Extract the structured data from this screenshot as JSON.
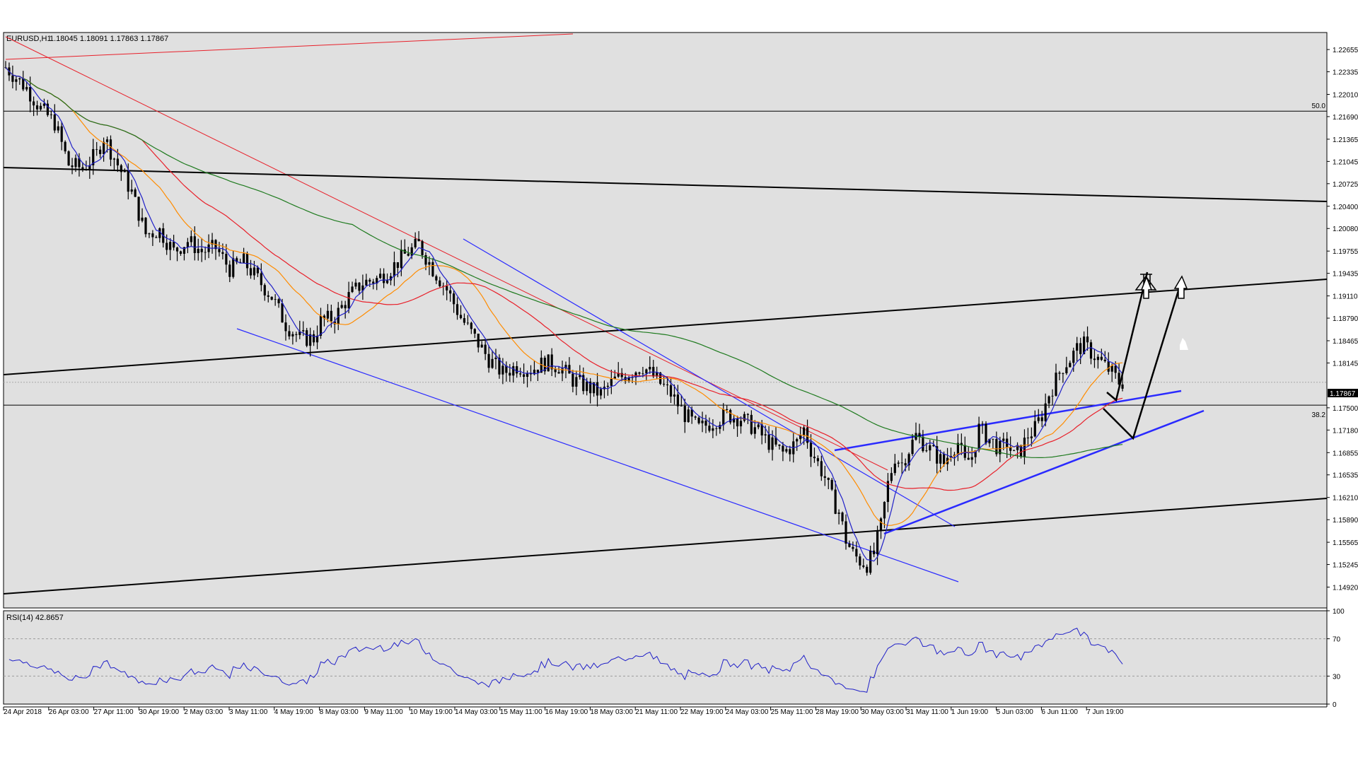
{
  "header": {
    "symbol_label": "EURUSD,H1",
    "ohlc_text": "1.18045 1.18091 1.17863 1.17867"
  },
  "chart_data": {
    "type": "candlestick",
    "symbol": "EURUSD",
    "timeframe": "H1",
    "ohlc": {
      "open": 1.18045,
      "high": 1.18091,
      "low": 1.17863,
      "close": 1.17867
    },
    "current_price_label": "1.17867",
    "price_axis": {
      "ylim": [
        1.1462,
        1.229
      ],
      "ticks": [
        "1.22655",
        "1.22335",
        "1.22010",
        "1.21690",
        "1.21365",
        "1.21045",
        "1.20725",
        "1.20400",
        "1.20080",
        "1.19755",
        "1.19435",
        "1.19110",
        "1.18790",
        "1.18465",
        "1.18145",
        "1.17500",
        "1.17180",
        "1.16855",
        "1.16535",
        "1.16210",
        "1.15890",
        "1.15565",
        "1.15245",
        "1.14920"
      ]
    },
    "time_axis": {
      "labels": [
        "24 Apr 2018",
        "26 Apr 03:00",
        "27 Apr 11:00",
        "30 Apr 19:00",
        "2 May 03:00",
        "3 May 11:00",
        "4 May 19:00",
        "8 May 03:00",
        "9 May 11:00",
        "10 May 19:00",
        "14 May 03:00",
        "15 May 11:00",
        "16 May 19:00",
        "18 May 03:00",
        "21 May 11:00",
        "22 May 19:00",
        "24 May 03:00",
        "25 May 11:00",
        "28 May 19:00",
        "30 May 03:00",
        "31 May 11:00",
        "1 Jun 19:00",
        "5 Jun 03:00",
        "6 Jun 11:00",
        "7 Jun 19:00"
      ]
    },
    "price_path": [
      [
        0,
        1.224
      ],
      [
        3,
        1.221
      ],
      [
        5,
        1.218
      ],
      [
        7,
        1.216
      ],
      [
        9,
        1.21
      ],
      [
        11,
        1.2095
      ],
      [
        13,
        1.2115
      ],
      [
        14,
        1.214
      ],
      [
        16,
        1.21
      ],
      [
        18,
        1.206
      ],
      [
        20,
        1.2
      ],
      [
        22,
        1.2005
      ],
      [
        24,
        1.1975
      ],
      [
        26,
        1.199
      ],
      [
        28,
        1.1975
      ],
      [
        30,
        1.198
      ],
      [
        32,
        1.195
      ],
      [
        34,
        1.196
      ],
      [
        36,
        1.1935
      ],
      [
        38,
        1.191
      ],
      [
        40,
        1.187
      ],
      [
        42,
        1.185
      ],
      [
        44,
        1.185
      ],
      [
        45,
        1.1875
      ],
      [
        47,
        1.188
      ],
      [
        49,
        1.191
      ],
      [
        51,
        1.193
      ],
      [
        53,
        1.1935
      ],
      [
        55,
        1.195
      ],
      [
        57,
        1.197
      ],
      [
        59,
        1.1985
      ],
      [
        61,
        1.195
      ],
      [
        63,
        1.192
      ],
      [
        65,
        1.188
      ],
      [
        67,
        1.185
      ],
      [
        69,
        1.182
      ],
      [
        71,
        1.18
      ],
      [
        73,
        1.181
      ],
      [
        75,
        1.1805
      ],
      [
        77,
        1.1815
      ],
      [
        79,
        1.181
      ],
      [
        81,
        1.179
      ],
      [
        83,
        1.178
      ],
      [
        85,
        1.177
      ],
      [
        87,
        1.179
      ],
      [
        89,
        1.18
      ],
      [
        91,
        1.181
      ],
      [
        93,
        1.179
      ],
      [
        95,
        1.177
      ],
      [
        97,
        1.174
      ],
      [
        99,
        1.172
      ],
      [
        101,
        1.173
      ],
      [
        103,
        1.174
      ],
      [
        105,
        1.1735
      ],
      [
        107,
        1.172
      ],
      [
        109,
        1.17
      ],
      [
        111,
        1.1685
      ],
      [
        113,
        1.17
      ],
      [
        114,
        1.172
      ],
      [
        115,
        1.169
      ],
      [
        117,
        1.165
      ],
      [
        118,
        1.162
      ],
      [
        119,
        1.16
      ],
      [
        120,
        1.156
      ],
      [
        121,
        1.154
      ],
      [
        122,
        1.153
      ],
      [
        123,
        1.1525
      ],
      [
        124,
        1.154
      ],
      [
        125,
        1.158
      ],
      [
        126,
        1.164
      ],
      [
        127,
        1.168
      ],
      [
        128,
        1.167
      ],
      [
        129,
        1.169
      ],
      [
        130,
        1.171
      ],
      [
        131,
        1.17
      ],
      [
        132,
        1.169
      ],
      [
        133,
        1.168
      ],
      [
        134,
        1.167
      ],
      [
        135,
        1.169
      ],
      [
        136,
        1.17
      ],
      [
        137,
        1.167
      ],
      [
        138,
        1.168
      ],
      [
        139,
        1.172
      ],
      [
        140,
        1.171
      ],
      [
        141,
        1.17
      ],
      [
        142,
        1.169
      ],
      [
        143,
        1.17
      ],
      [
        144,
        1.168
      ],
      [
        145,
        1.169
      ],
      [
        146,
        1.171
      ],
      [
        147,
        1.172
      ],
      [
        148,
        1.174
      ],
      [
        149,
        1.177
      ],
      [
        150,
        1.179
      ],
      [
        151,
        1.181
      ],
      [
        152,
        1.182
      ],
      [
        153,
        1.1835
      ],
      [
        154,
        1.184
      ],
      [
        155,
        1.183
      ],
      [
        156,
        1.182
      ],
      [
        157,
        1.181
      ],
      [
        158,
        1.18
      ],
      [
        159,
        1.1787
      ]
    ],
    "moving_averages": [
      {
        "color": "#ff8c00",
        "period": 10
      },
      {
        "color": "#e8202a",
        "period": 20
      },
      {
        "color": "#1e7a1e",
        "period": 50
      }
    ],
    "levels": [
      {
        "label": "50.0",
        "price": 1.21768
      },
      {
        "label": "38.2",
        "price": 1.17538
      }
    ],
    "rsi": {
      "label": "RSI(14) 42.8657",
      "period": 14,
      "last": 42.8657,
      "ylim": [
        0,
        100
      ],
      "ticks": [
        "100",
        "70",
        "30",
        "0"
      ],
      "levels": [
        70,
        30
      ]
    }
  },
  "colors": {
    "chart_bg": "#e0e0e0",
    "candle": "#000000",
    "trendline_red": "#e8202a",
    "channel_blue": "#2a2aff",
    "trendline_black": "#000000",
    "rsi_line": "#2020c8"
  }
}
